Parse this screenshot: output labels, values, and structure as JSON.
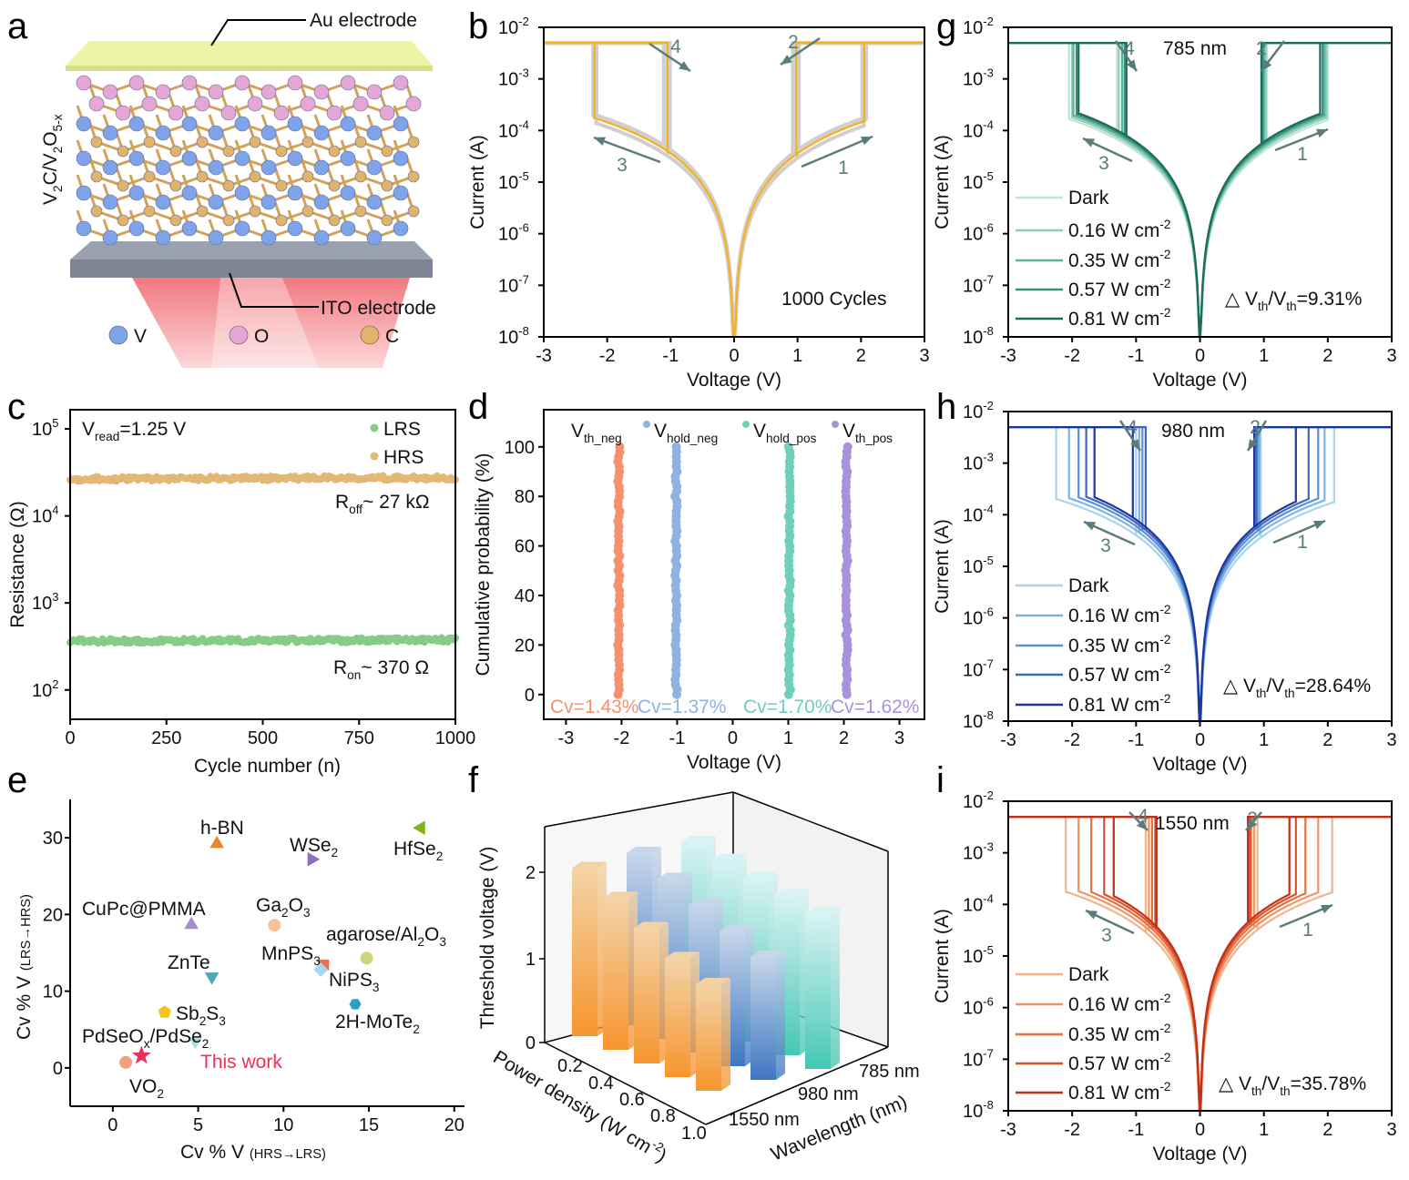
{
  "panel_letters": {
    "a": "a",
    "b": "b",
    "c": "c",
    "d": "d",
    "e": "e",
    "f": "f",
    "g": "g",
    "h": "h",
    "i": "i"
  },
  "panel_a": {
    "au_label": "Au electrode",
    "ito_label": "ITO electrode",
    "material_label": [
      {
        "t": "V"
      },
      {
        "t": "2",
        "s": "sub"
      },
      {
        "t": "C/V"
      },
      {
        "t": "2",
        "s": "sub"
      },
      {
        "t": "O"
      },
      {
        "t": "5-x",
        "s": "sub"
      }
    ],
    "legend": [
      {
        "label": "V",
        "color": "#7fa3e8"
      },
      {
        "label": "O",
        "color": "#e4a6d4"
      },
      {
        "label": "C",
        "color": "#e2b36b"
      }
    ],
    "plate_colors": {
      "au": "#eef4a6",
      "ito": "#7d8494",
      "light": "#f0606a"
    }
  },
  "chart_data": [
    {
      "panel": "b",
      "type": "line",
      "yscale": "log",
      "xlabel": "Voltage (V)",
      "ylabel": "Current (A)",
      "xlim": [
        -3,
        3
      ],
      "ylim": [
        1e-08,
        0.01
      ],
      "xticks": [
        -3,
        -2,
        -1,
        0,
        1,
        2,
        3
      ],
      "ytick_base": "10",
      "ytick_exponents": [
        "-8",
        "-7",
        "-6",
        "-5",
        "-4",
        "-3",
        "-2"
      ],
      "compliance_A": 0.005,
      "annotation": "1000 Cycles",
      "arrow_labels": [
        "1",
        "2",
        "3",
        "4"
      ],
      "arrow_color": "#5c7b7b",
      "background_cycles_color": "#cfcfcf",
      "series": [
        {
          "color": "#f5b21b",
          "vth_pos": 2.05,
          "vhold_pos": 0.98,
          "vth_neg": -2.2,
          "vhold_neg": -1.05,
          "current_at_1V_A": 3.6e-05
        }
      ]
    },
    {
      "panel": "c",
      "type": "scatter",
      "yscale": "log",
      "xlabel": "Cycle number (n)",
      "ylabel": "Resistance (Ω)",
      "xlim": [
        0,
        1000
      ],
      "ylim": [
        46,
        166000
      ],
      "xticks": [
        0,
        250,
        500,
        750,
        1000
      ],
      "ytick_base": "10",
      "ytick_exponents": [
        "2",
        "3",
        "4",
        "5"
      ],
      "read_label": [
        {
          "t": "V"
        },
        {
          "t": "read",
          "s": "sub"
        },
        {
          "t": "=1.25 V"
        }
      ],
      "series": [
        {
          "name": "LRS",
          "color": "#86cc86",
          "mean_ohm": 370
        },
        {
          "name": "HRS",
          "color": "#e3b877",
          "mean_ohm": 27000
        }
      ],
      "roff_label": [
        {
          "t": "R"
        },
        {
          "t": "off",
          "s": "sub"
        },
        {
          "t": "~ 27 kΩ"
        }
      ],
      "ron_label": [
        {
          "t": "R"
        },
        {
          "t": "on",
          "s": "sub"
        },
        {
          "t": "~ 370 Ω"
        }
      ]
    },
    {
      "panel": "d",
      "type": "scatter",
      "xlabel": "Voltage (V)",
      "ylabel": "Cumulative probability (%)",
      "xlim": [
        -3.4,
        3.45
      ],
      "ylim": [
        -10,
        115
      ],
      "xticks": [
        -3,
        -2,
        -1,
        0,
        1,
        2,
        3
      ],
      "yticks": [
        0,
        20,
        40,
        60,
        80,
        100
      ],
      "series": [
        {
          "name": [
            {
              "t": "V"
            },
            {
              "t": "th_neg",
              "s": "sub"
            }
          ],
          "color": "#f4916f",
          "voltage": -2.05,
          "cv": "Cv=1.43%"
        },
        {
          "name": [
            {
              "t": "V"
            },
            {
              "t": "hold_neg",
              "s": "sub"
            }
          ],
          "color": "#8db3e2",
          "voltage": -1.02,
          "cv": "Cv=1.37%"
        },
        {
          "name": [
            {
              "t": "V"
            },
            {
              "t": "hold_pos",
              "s": "sub"
            }
          ],
          "color": "#6fcfbd",
          "voltage": 1.02,
          "cv": "Cv=1.70%"
        },
        {
          "name": [
            {
              "t": "V"
            },
            {
              "t": "th_pos",
              "s": "sub"
            }
          ],
          "color": "#a992db",
          "voltage": 2.05,
          "cv": "Cv=1.62%"
        }
      ]
    },
    {
      "panel": "e",
      "type": "scatter",
      "xlabel": [
        {
          "t": "Cv %  V "
        },
        {
          "t": "(HRS→LRS)",
          "s": "small"
        }
      ],
      "ylabel": [
        {
          "t": "Cv %  V "
        },
        {
          "t": "(LRS→HRS)",
          "s": "small"
        }
      ],
      "xlim": [
        -2.5,
        20.6
      ],
      "ylim": [
        -5,
        35
      ],
      "xticks": [
        0,
        5,
        10,
        15,
        20
      ],
      "yticks": [
        0,
        10,
        20,
        30
      ],
      "points": [
        {
          "label": [
            {
              "t": "h-BN"
            }
          ],
          "x": 6.1,
          "y": 29.2,
          "marker": "triangle-up",
          "color": "#e8862a"
        },
        {
          "label": [
            {
              "t": "WSe"
            },
            {
              "t": "2",
              "s": "sub"
            }
          ],
          "x": 11.65,
          "y": 27.2,
          "marker": "triangle-right",
          "color": "#8a6fc2"
        },
        {
          "label": [
            {
              "t": "HfSe"
            },
            {
              "t": "2",
              "s": "sub"
            }
          ],
          "x": 18.05,
          "y": 31.3,
          "marker": "triangle-left",
          "color": "#7cb518"
        },
        {
          "label": [
            {
              "t": "CuPc@PMMA"
            }
          ],
          "x": 4.6,
          "y": 18.65,
          "marker": "triangle-up",
          "color": "#a48ccb"
        },
        {
          "label": [
            {
              "t": "Ga"
            },
            {
              "t": "2",
              "s": "sub"
            },
            {
              "t": "O"
            },
            {
              "t": "3",
              "s": "sub"
            }
          ],
          "x": 9.47,
          "y": 18.6,
          "marker": "circle",
          "color": "#f5c29a"
        },
        {
          "label": [
            {
              "t": "agarose/Al"
            },
            {
              "t": "2",
              "s": "sub"
            },
            {
              "t": "O"
            },
            {
              "t": "3",
              "s": "sub"
            }
          ],
          "x": 14.87,
          "y": 14.3,
          "marker": "circle",
          "color": "#cfd67a"
        },
        {
          "label": [
            {
              "t": "MnPS"
            },
            {
              "t": "3",
              "s": "sub"
            }
          ],
          "x": 12.34,
          "y": 13.4,
          "marker": "square",
          "color": "#e8714c"
        },
        {
          "label": [
            {
              "t": "NiPS"
            },
            {
              "t": "3",
              "s": "sub"
            }
          ],
          "x": 12.18,
          "y": 12.8,
          "marker": "diamond",
          "color": "#a9d6f0"
        },
        {
          "label": [
            {
              "t": "ZnTe"
            }
          ],
          "x": 5.8,
          "y": 11.9,
          "marker": "triangle-down",
          "color": "#4fa7c0"
        },
        {
          "label": [
            {
              "t": "2H-MoTe"
            },
            {
              "t": "2",
              "s": "sub"
            }
          ],
          "x": 14.2,
          "y": 8.3,
          "marker": "hexagon",
          "color": "#2aa0c8"
        },
        {
          "label": [
            {
              "t": "Sb"
            },
            {
              "t": "2",
              "s": "sub"
            },
            {
              "t": "S"
            },
            {
              "t": "3",
              "s": "sub"
            }
          ],
          "x": 3.04,
          "y": 7.26,
          "marker": "pentagon",
          "color": "#f7c31e"
        },
        {
          "label": [
            {
              "t": "PdSeO"
            },
            {
              "t": "x",
              "s": "sub"
            },
            {
              "t": "/PdSe"
            },
            {
              "t": "2",
              "s": "sub"
            }
          ],
          "x": 4.83,
          "y": 3.5,
          "marker": "triangle-down",
          "color": "#a8e0d8"
        },
        {
          "label": [
            {
              "t": "This work"
            }
          ],
          "x": 1.68,
          "y": 1.59,
          "marker": "star",
          "color": "#e8325a",
          "label_color": "#e8325a"
        },
        {
          "label": [
            {
              "t": "VO"
            },
            {
              "t": "2",
              "s": "sub"
            }
          ],
          "x": 0.76,
          "y": 0.71,
          "marker": "circle",
          "color": "#f0a07e"
        }
      ]
    },
    {
      "panel": "f",
      "type": "bar3d",
      "zlabel": "Threshold voltage (V)",
      "xlabel": [
        {
          "t": "Power density (W cm"
        },
        {
          "t": "-2",
          "s": "sup"
        },
        {
          "t": ")"
        }
      ],
      "ylabel": "Wavelength (nm)",
      "zticks": [
        0,
        1,
        2
      ],
      "x_categories": [
        "0.2",
        "0.4",
        "0.6",
        "0.8",
        "1.0"
      ],
      "y_categories": [
        "1550 nm",
        "980 nm",
        "785 nm"
      ],
      "series": [
        {
          "wavelength": "1550 nm",
          "values": [
            2.05,
            1.85,
            1.65,
            1.45,
            1.3
          ],
          "color_top": "#f3d3a6",
          "color_bottom": "#f7952f"
        },
        {
          "wavelength": "980 nm",
          "values": [
            2.1,
            1.95,
            1.8,
            1.65,
            1.5
          ],
          "color_top": "#c7d6ea",
          "color_bottom": "#3f78c2"
        },
        {
          "wavelength": "785 nm",
          "values": [
            2.1,
            2.05,
            2.0,
            1.95,
            1.9
          ],
          "color_top": "#d8f3f3",
          "color_bottom": "#45c7b4"
        }
      ]
    },
    {
      "panel": "g",
      "type": "line",
      "yscale": "log",
      "xlabel": "Voltage (V)",
      "ylabel": "Current (A)",
      "xlim": [
        -3,
        3
      ],
      "ylim": [
        1e-08,
        0.01
      ],
      "xticks": [
        -3,
        -2,
        -1,
        0,
        1,
        2,
        3
      ],
      "ytick_base": "10",
      "ytick_exponents": [
        "-8",
        "-7",
        "-6",
        "-5",
        "-4",
        "-3",
        "-2"
      ],
      "compliance_A": 0.005,
      "title": "785 nm",
      "arrow_labels": [
        "1",
        "2",
        "3",
        "4"
      ],
      "arrow_color": "#5c7b7b",
      "variation": [
        {
          "t": "△ V"
        },
        {
          "t": "th",
          "s": "sub"
        },
        {
          "t": "/V"
        },
        {
          "t": "th",
          "s": "sub"
        },
        {
          "t": "=9.31%"
        }
      ],
      "series": [
        {
          "name": [
            {
              "t": "Dark"
            }
          ],
          "color": "#bfe3d6",
          "vth_pos": 2.0,
          "vhold_pos": 1.05,
          "vth_neg": -2.05,
          "vhold_neg": -1.3,
          "current_at_1V_A": 4e-05
        },
        {
          "name": [
            {
              "t": "0.16 W cm"
            },
            {
              "t": "-2",
              "s": "sup"
            }
          ],
          "color": "#8fcdb9",
          "vth_pos": 1.98,
          "vhold_pos": 1.03,
          "vth_neg": -2.0,
          "vhold_neg": -1.27,
          "current_at_1V_A": 4.5e-05
        },
        {
          "name": [
            {
              "t": "0.35 W cm"
            },
            {
              "t": "-2",
              "s": "sup"
            }
          ],
          "color": "#5eb29c",
          "vth_pos": 1.95,
          "vhold_pos": 1.0,
          "vth_neg": -1.98,
          "vhold_neg": -1.22,
          "current_at_1V_A": 5e-05
        },
        {
          "name": [
            {
              "t": "0.57 W cm"
            },
            {
              "t": "-2",
              "s": "sup"
            }
          ],
          "color": "#33917c",
          "vth_pos": 1.92,
          "vhold_pos": 0.98,
          "vth_neg": -1.93,
          "vhold_neg": -1.18,
          "current_at_1V_A": 5.5e-05
        },
        {
          "name": [
            {
              "t": "0.81 W cm"
            },
            {
              "t": "-2",
              "s": "sup"
            }
          ],
          "color": "#1e6b5b",
          "vth_pos": 1.88,
          "vhold_pos": 0.96,
          "vth_neg": -1.9,
          "vhold_neg": -1.15,
          "current_at_1V_A": 6e-05
        }
      ]
    },
    {
      "panel": "h",
      "type": "line",
      "yscale": "log",
      "xlabel": "Voltage (V)",
      "ylabel": "Current (A)",
      "xlim": [
        -3,
        3
      ],
      "ylim": [
        1e-08,
        0.01
      ],
      "xticks": [
        -3,
        -2,
        -1,
        0,
        1,
        2,
        3
      ],
      "ytick_base": "10",
      "ytick_exponents": [
        "-8",
        "-7",
        "-6",
        "-5",
        "-4",
        "-3",
        "-2"
      ],
      "compliance_A": 0.005,
      "title": "980 nm",
      "arrow_labels": [
        "1",
        "2",
        "3",
        "4"
      ],
      "arrow_color": "#5c7b7b",
      "variation": [
        {
          "t": "△ V"
        },
        {
          "t": "th",
          "s": "sub"
        },
        {
          "t": "/V"
        },
        {
          "t": "th",
          "s": "sub"
        },
        {
          "t": "=28.64%"
        }
      ],
      "series": [
        {
          "name": [
            {
              "t": "Dark"
            }
          ],
          "color": "#a9d3ee",
          "vth_pos": 2.1,
          "vhold_pos": 0.95,
          "vth_neg": -2.25,
          "vhold_neg": -1.0,
          "current_at_1V_A": 4e-05
        },
        {
          "name": [
            {
              "t": "0.16 W cm"
            },
            {
              "t": "-2",
              "s": "sup"
            }
          ],
          "color": "#7fb3e0",
          "vth_pos": 1.95,
          "vhold_pos": 0.93,
          "vth_neg": -2.05,
          "vhold_neg": -0.95,
          "current_at_1V_A": 5e-05
        },
        {
          "name": [
            {
              "t": "0.35 W cm"
            },
            {
              "t": "-2",
              "s": "sup"
            }
          ],
          "color": "#5b90d6",
          "vth_pos": 1.85,
          "vhold_pos": 0.9,
          "vth_neg": -1.9,
          "vhold_neg": -0.9,
          "current_at_1V_A": 6e-05
        },
        {
          "name": [
            {
              "t": "0.57 W cm"
            },
            {
              "t": "-2",
              "s": "sup"
            }
          ],
          "color": "#3d68c0",
          "vth_pos": 1.7,
          "vhold_pos": 0.88,
          "vth_neg": -1.78,
          "vhold_neg": -0.85,
          "current_at_1V_A": 7e-05
        },
        {
          "name": [
            {
              "t": "0.81 W cm"
            },
            {
              "t": "-2",
              "s": "sup"
            }
          ],
          "color": "#1e379b",
          "vth_pos": 1.5,
          "vhold_pos": 0.85,
          "vth_neg": -1.65,
          "vhold_neg": -1.05,
          "current_at_1V_A": 8e-05
        }
      ]
    },
    {
      "panel": "i",
      "type": "line",
      "yscale": "log",
      "xlabel": "Voltage (V)",
      "ylabel": "Current (A)",
      "xlim": [
        -3,
        3
      ],
      "ylim": [
        1e-08,
        0.01
      ],
      "xticks": [
        -3,
        -2,
        -1,
        0,
        1,
        2,
        3
      ],
      "ytick_base": "10",
      "ytick_exponents": [
        "-8",
        "-7",
        "-6",
        "-5",
        "-4",
        "-3",
        "-2"
      ],
      "compliance_A": 0.005,
      "title": "1550 nm",
      "arrow_labels": [
        "1",
        "2",
        "3",
        "4"
      ],
      "arrow_color": "#5c7b7b",
      "variation": [
        {
          "t": "△ V"
        },
        {
          "t": "th",
          "s": "sub"
        },
        {
          "t": "/V"
        },
        {
          "t": "th",
          "s": "sub"
        },
        {
          "t": "=35.78%"
        }
      ],
      "series": [
        {
          "name": [
            {
              "t": "Dark"
            }
          ],
          "color": "#f4b38a",
          "vth_pos": 2.07,
          "vhold_pos": 0.9,
          "vth_neg": -2.1,
          "vhold_neg": -0.85,
          "current_at_1V_A": 4e-05
        },
        {
          "name": [
            {
              "t": "0.16 W cm"
            },
            {
              "t": "-2",
              "s": "sup"
            }
          ],
          "color": "#ee9566",
          "vth_pos": 1.85,
          "vhold_pos": 0.85,
          "vth_neg": -1.9,
          "vhold_neg": -0.8,
          "current_at_1V_A": 5e-05
        },
        {
          "name": [
            {
              "t": "0.35 W cm"
            },
            {
              "t": "-2",
              "s": "sup"
            }
          ],
          "color": "#e6703e",
          "vth_pos": 1.65,
          "vhold_pos": 0.8,
          "vth_neg": -1.7,
          "vhold_neg": -0.75,
          "current_at_1V_A": 6e-05
        },
        {
          "name": [
            {
              "t": "0.57 W cm"
            },
            {
              "t": "-2",
              "s": "sup"
            }
          ],
          "color": "#d9502a",
          "vth_pos": 1.5,
          "vhold_pos": 0.78,
          "vth_neg": -1.5,
          "vhold_neg": -0.7,
          "current_at_1V_A": 7e-05
        },
        {
          "name": [
            {
              "t": "0.81 W cm"
            },
            {
              "t": "-2",
              "s": "sup"
            }
          ],
          "color": "#c03018",
          "vth_pos": 1.4,
          "vhold_pos": 0.75,
          "vth_neg": -1.35,
          "vhold_neg": -0.68,
          "current_at_1V_A": 8e-05
        }
      ]
    }
  ]
}
